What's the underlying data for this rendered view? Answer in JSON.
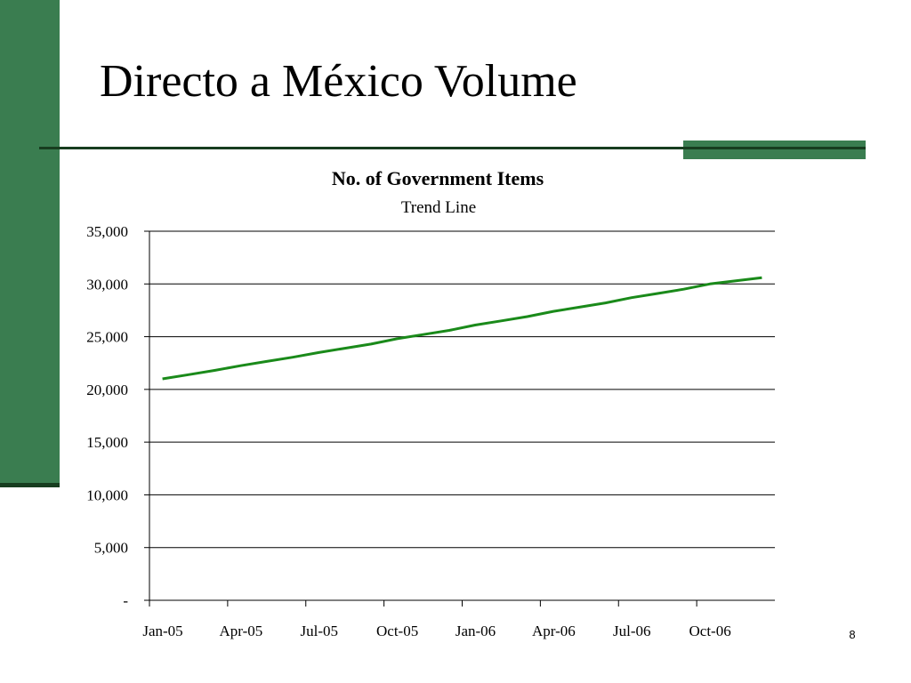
{
  "slide": {
    "title": "Directo a México Volume",
    "page_number": "8"
  },
  "colors": {
    "accent_green": "#3a7d50",
    "dark_green": "#173d1f",
    "series_green": "#1a8a1a"
  },
  "chart_data": {
    "type": "line",
    "title": "No. of Government Items",
    "subtitle": "Trend Line",
    "xlabel": "",
    "ylabel": "",
    "x": [
      "Jan-05",
      "Feb-05",
      "Mar-05",
      "Apr-05",
      "May-05",
      "Jun-05",
      "Jul-05",
      "Aug-05",
      "Sep-05",
      "Oct-05",
      "Nov-05",
      "Dec-05",
      "Jan-06",
      "Feb-06",
      "Mar-06",
      "Apr-06",
      "May-06",
      "Jun-06",
      "Jul-06",
      "Aug-06",
      "Sep-06",
      "Oct-06",
      "Nov-06",
      "Dec-06"
    ],
    "x_tick_labels": [
      "Jan-05",
      "Apr-05",
      "Jul-05",
      "Oct-05",
      "Jan-06",
      "Apr-06",
      "Jul-06",
      "Oct-06"
    ],
    "series": [
      {
        "values": [
          21000,
          21400,
          21800,
          22250,
          22650,
          23050,
          23500,
          23900,
          24300,
          24800,
          25200,
          25600,
          26100,
          26500,
          26900,
          27400,
          27800,
          28200,
          28700,
          29100,
          29500,
          30000,
          30300,
          30600
        ]
      }
    ],
    "ylim": [
      0,
      35000
    ],
    "y_ticks": [
      0,
      5000,
      10000,
      15000,
      20000,
      25000,
      30000,
      35000
    ],
    "y_tick_labels": [
      "-",
      "5,000",
      "10,000",
      "15,000",
      "20,000",
      "25,000",
      "30,000",
      "35,000"
    ],
    "grid": true,
    "legend": "none"
  }
}
